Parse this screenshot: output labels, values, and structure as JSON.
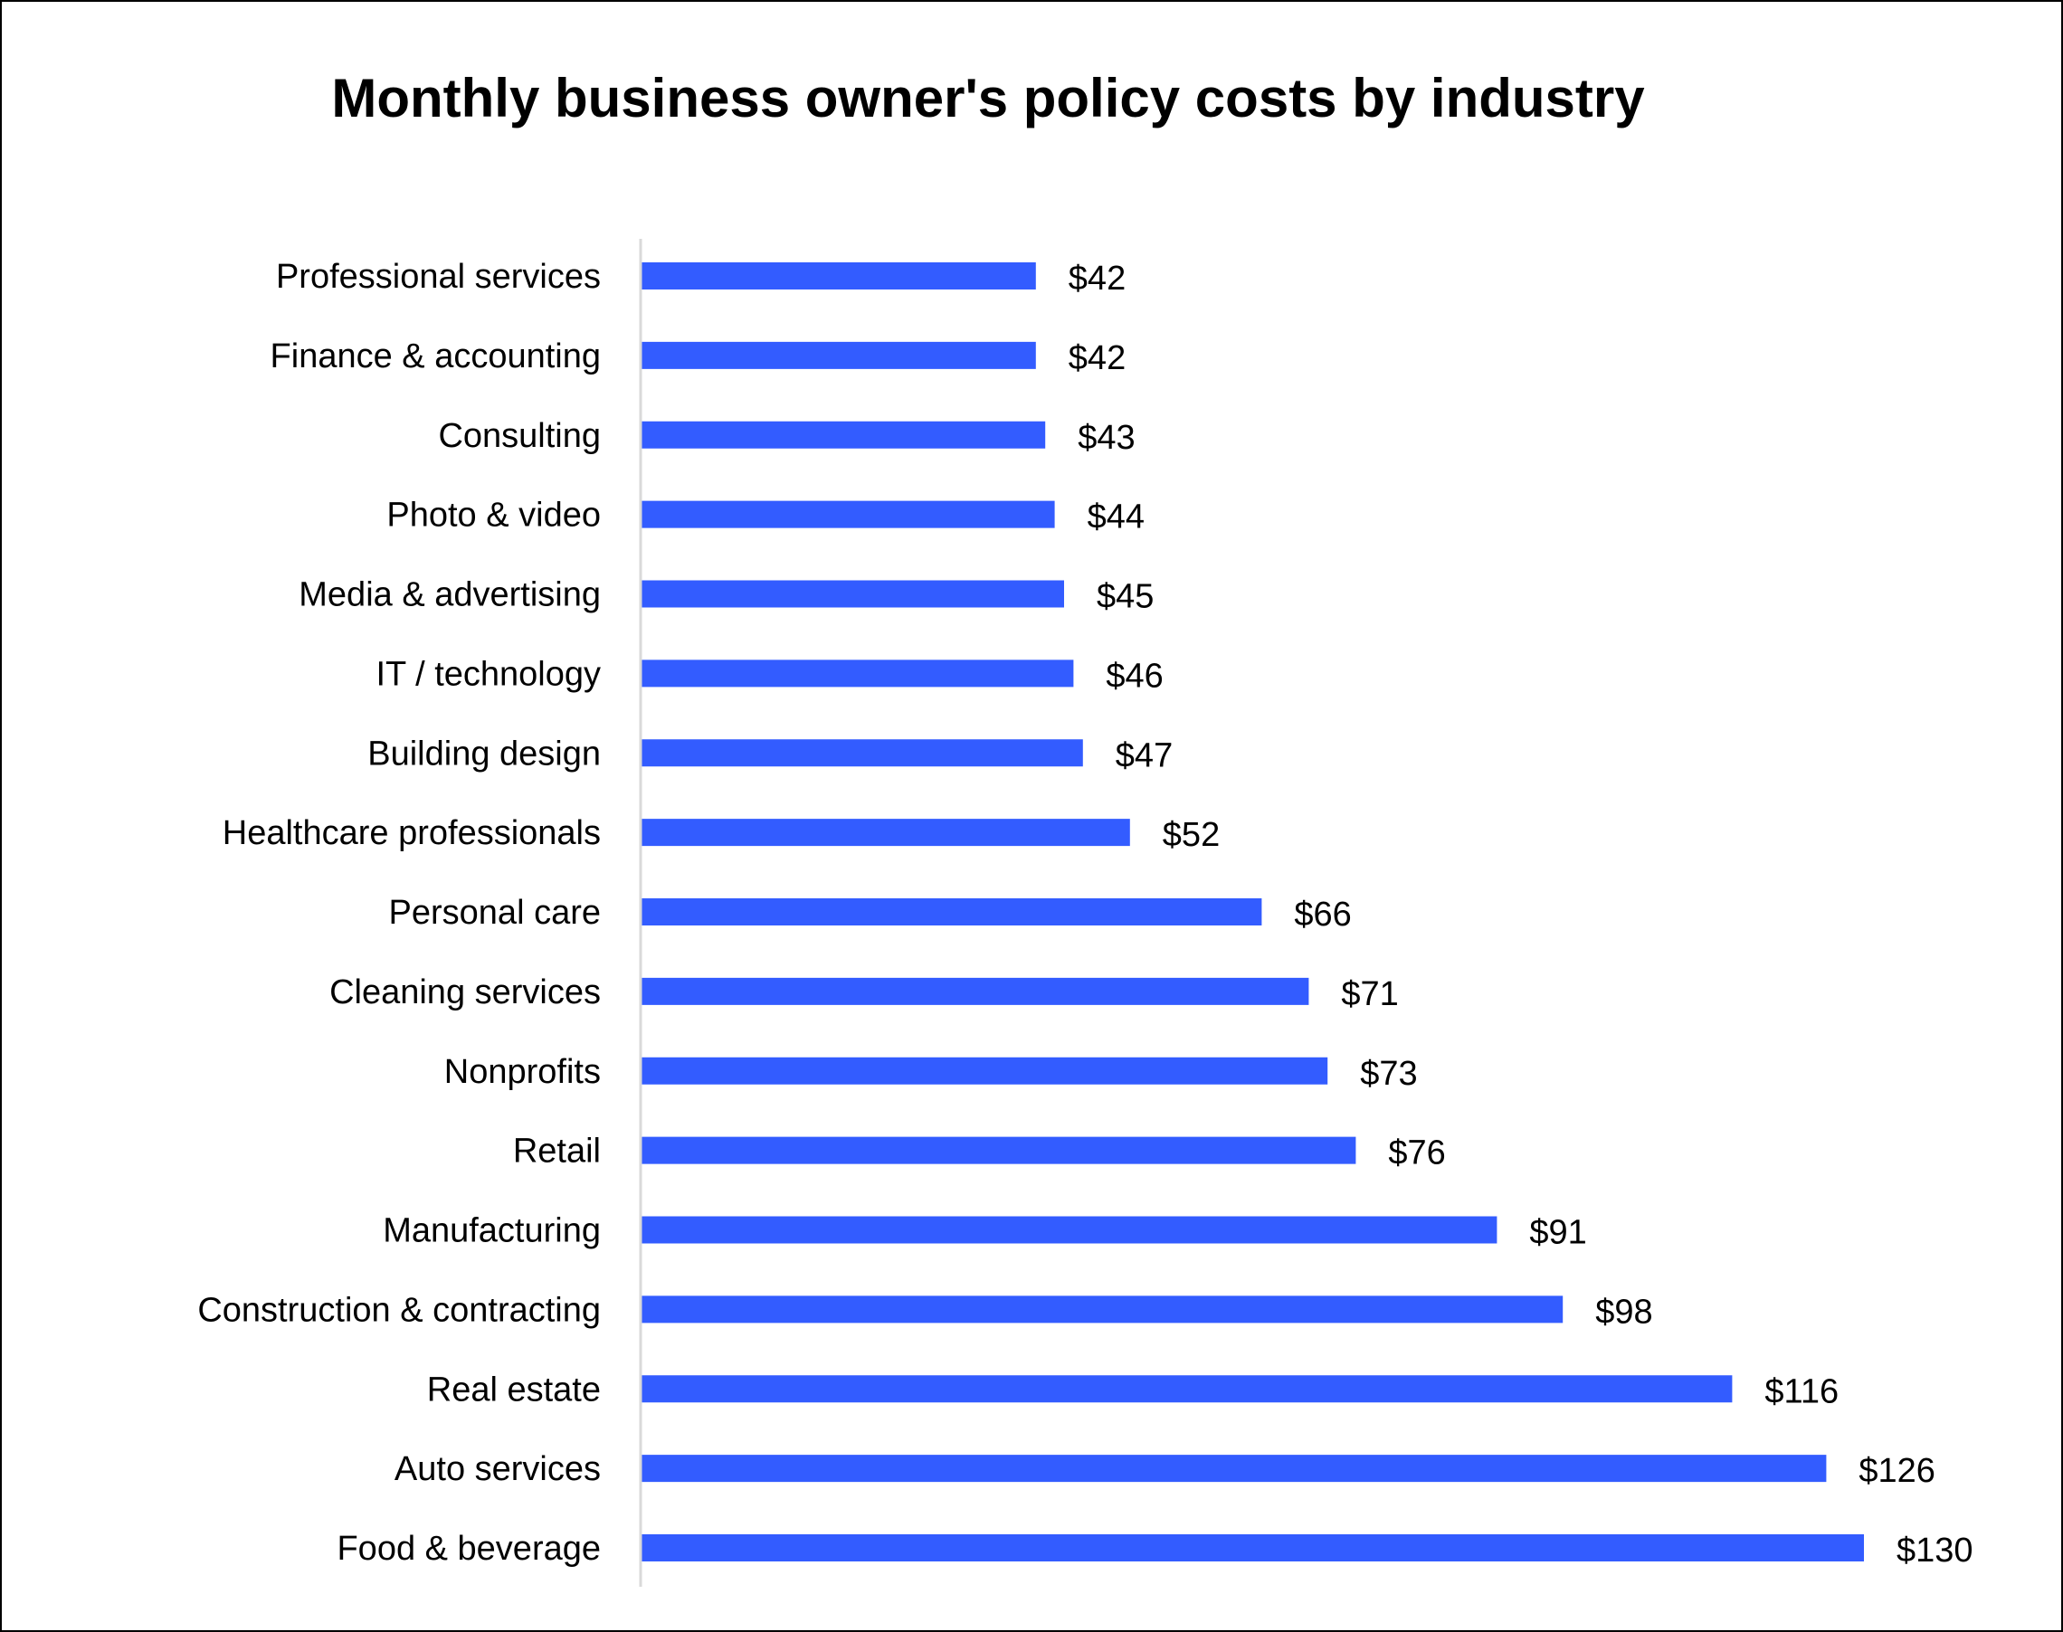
{
  "chart_data": {
    "type": "bar",
    "orientation": "horizontal",
    "title": "Monthly business owner's policy costs by industry",
    "categories": [
      "Professional services",
      "Finance & accounting",
      "Consulting",
      "Photo & video",
      "Media & advertising",
      "IT / technology",
      "Building design",
      "Healthcare professionals",
      "Personal care",
      "Cleaning services",
      "Nonprofits",
      "Retail",
      "Manufacturing",
      "Construction & contracting",
      "Real estate",
      "Auto services",
      "Food & beverage"
    ],
    "values": [
      42,
      42,
      43,
      44,
      45,
      46,
      47,
      52,
      66,
      71,
      73,
      76,
      91,
      98,
      116,
      126,
      130
    ],
    "data_labels": [
      "$42",
      "$42",
      "$43",
      "$44",
      "$45",
      "$46",
      "$47",
      "$52",
      "$66",
      "$71",
      "$73",
      "$76",
      "$91",
      "$98",
      "$116",
      "$126",
      "$130"
    ],
    "xlabel": "",
    "ylabel": "",
    "xlim": [
      0,
      130
    ],
    "grid": false,
    "legend": "none",
    "bar_color": "#335CFF",
    "axis_color": "#D9D9D9"
  }
}
